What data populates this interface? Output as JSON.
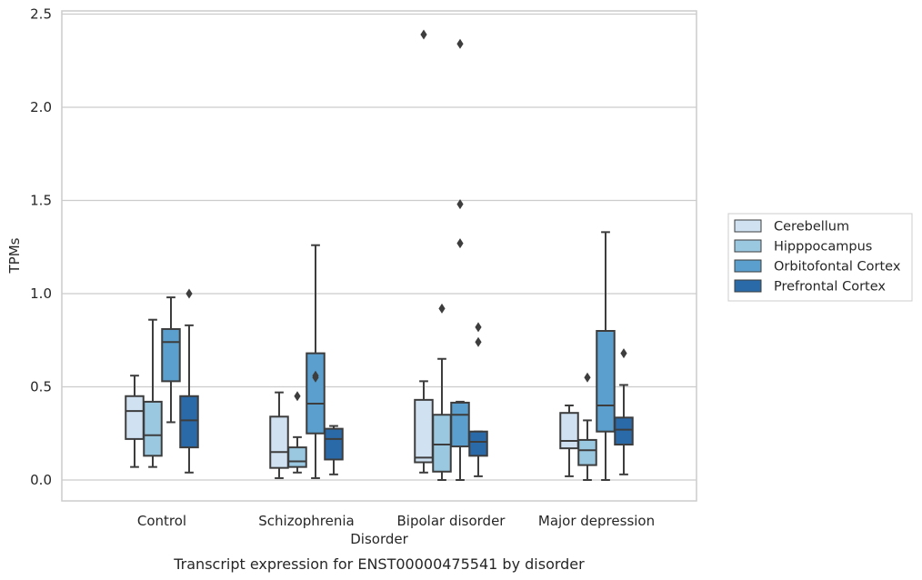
{
  "chart_data": {
    "type": "box",
    "title": "Transcript expression for ENST00000475541 by disorder",
    "xlabel": "Disorder",
    "ylabel": "TPMs",
    "ylim": [
      -0.115,
      2.515
    ],
    "yticks": [
      "0.0",
      "0.5",
      "1.0",
      "1.5",
      "2.0",
      "2.5"
    ],
    "grid": true,
    "legend_position": "right",
    "categories": [
      "Control",
      "Schizophrenia",
      "Bipolar disorder",
      "Major depression"
    ],
    "series": [
      {
        "name": "Cerebellum",
        "color": "#d0e1f2",
        "boxes": [
          {
            "whisker_low": 0.07,
            "q1": 0.22,
            "median": 0.37,
            "q3": 0.45,
            "whisker_high": 0.56,
            "outliers": []
          },
          {
            "whisker_low": 0.01,
            "q1": 0.065,
            "median": 0.15,
            "q3": 0.34,
            "whisker_high": 0.47,
            "outliers": []
          },
          {
            "whisker_low": 0.04,
            "q1": 0.095,
            "median": 0.12,
            "q3": 0.43,
            "whisker_high": 0.53,
            "outliers": [
              2.39
            ]
          },
          {
            "whisker_low": 0.02,
            "q1": 0.17,
            "median": 0.21,
            "q3": 0.36,
            "whisker_high": 0.4,
            "outliers": []
          }
        ]
      },
      {
        "name": "Hipppocampus",
        "color": "#9ac8e0",
        "boxes": [
          {
            "whisker_low": 0.07,
            "q1": 0.13,
            "median": 0.24,
            "q3": 0.42,
            "whisker_high": 0.86,
            "outliers": []
          },
          {
            "whisker_low": 0.04,
            "q1": 0.07,
            "median": 0.1,
            "q3": 0.175,
            "whisker_high": 0.23,
            "outliers": [
              0.45
            ]
          },
          {
            "whisker_low": 0.0,
            "q1": 0.045,
            "median": 0.19,
            "q3": 0.35,
            "whisker_high": 0.65,
            "outliers": [
              0.92
            ]
          },
          {
            "whisker_low": 0.0,
            "q1": 0.08,
            "median": 0.16,
            "q3": 0.215,
            "whisker_high": 0.32,
            "outliers": [
              0.55
            ]
          }
        ]
      },
      {
        "name": "Orbitofontal Cortex",
        "color": "#5a9fcd",
        "boxes": [
          {
            "whisker_low": 0.31,
            "q1": 0.53,
            "median": 0.74,
            "q3": 0.81,
            "whisker_high": 0.98,
            "outliers": []
          },
          {
            "whisker_low": 0.01,
            "q1": 0.25,
            "median": 0.41,
            "q3": 0.68,
            "whisker_high": 1.26,
            "outliers": [
              0.55,
              0.56
            ]
          },
          {
            "whisker_low": 0.0,
            "q1": 0.18,
            "median": 0.35,
            "q3": 0.415,
            "whisker_high": 0.42,
            "outliers": [
              1.27,
              1.48,
              2.34
            ]
          },
          {
            "whisker_low": 0.0,
            "q1": 0.26,
            "median": 0.4,
            "q3": 0.8,
            "whisker_high": 1.33,
            "outliers": []
          }
        ]
      },
      {
        "name": "Prefrontal Cortex",
        "color": "#2b6aa9",
        "boxes": [
          {
            "whisker_low": 0.04,
            "q1": 0.175,
            "median": 0.32,
            "q3": 0.45,
            "whisker_high": 0.83,
            "outliers": [
              1.0
            ]
          },
          {
            "whisker_low": 0.03,
            "q1": 0.11,
            "median": 0.22,
            "q3": 0.275,
            "whisker_high": 0.29,
            "outliers": []
          },
          {
            "whisker_low": 0.02,
            "q1": 0.13,
            "median": 0.205,
            "q3": 0.26,
            "whisker_high": 0.26,
            "outliers": [
              0.74,
              0.82
            ]
          },
          {
            "whisker_low": 0.03,
            "q1": 0.19,
            "median": 0.27,
            "q3": 0.335,
            "whisker_high": 0.51,
            "outliers": [
              0.68
            ]
          }
        ]
      }
    ]
  }
}
